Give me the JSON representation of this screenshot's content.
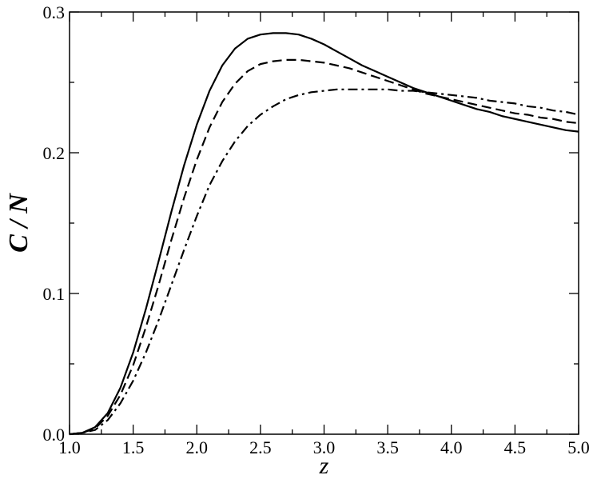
{
  "chart_data": {
    "type": "line",
    "title": "",
    "xlabel": "z",
    "ylabel": "C / N",
    "xlim": [
      1.0,
      5.0
    ],
    "ylim": [
      0.0,
      0.3
    ],
    "grid": false,
    "legend": "none",
    "x_ticks": [
      "1.0",
      "1.5",
      "2.0",
      "2.5",
      "3.0",
      "3.5",
      "4.0",
      "4.5",
      "5.0"
    ],
    "y_ticks": [
      "0.0",
      "0.1",
      "0.2",
      "0.3"
    ],
    "x": [
      1.0,
      1.1,
      1.2,
      1.3,
      1.4,
      1.5,
      1.6,
      1.7,
      1.8,
      1.9,
      2.0,
      2.1,
      2.2,
      2.3,
      2.4,
      2.5,
      2.6,
      2.7,
      2.8,
      2.9,
      3.0,
      3.1,
      3.2,
      3.3,
      3.4,
      3.5,
      3.6,
      3.7,
      3.8,
      3.9,
      4.0,
      4.1,
      4.2,
      4.3,
      4.4,
      4.5,
      4.6,
      4.7,
      4.8,
      4.9,
      5.0
    ],
    "series": [
      {
        "style": "solid",
        "values": [
          0.0,
          0.001,
          0.005,
          0.015,
          0.033,
          0.058,
          0.089,
          0.123,
          0.158,
          0.191,
          0.22,
          0.244,
          0.262,
          0.274,
          0.281,
          0.284,
          0.285,
          0.285,
          0.284,
          0.281,
          0.277,
          0.272,
          0.267,
          0.262,
          0.258,
          0.254,
          0.25,
          0.246,
          0.243,
          0.24,
          0.237,
          0.234,
          0.231,
          0.229,
          0.226,
          0.224,
          0.222,
          0.22,
          0.218,
          0.216,
          0.215
        ]
      },
      {
        "style": "dashed",
        "values": [
          0.0,
          0.001,
          0.004,
          0.013,
          0.028,
          0.049,
          0.076,
          0.106,
          0.138,
          0.168,
          0.195,
          0.218,
          0.236,
          0.249,
          0.258,
          0.263,
          0.265,
          0.266,
          0.266,
          0.265,
          0.264,
          0.262,
          0.26,
          0.257,
          0.254,
          0.251,
          0.248,
          0.245,
          0.242,
          0.24,
          0.238,
          0.236,
          0.234,
          0.232,
          0.23,
          0.228,
          0.227,
          0.225,
          0.224,
          0.222,
          0.221
        ]
      },
      {
        "style": "dash-dot",
        "values": [
          0.0,
          0.001,
          0.003,
          0.01,
          0.022,
          0.038,
          0.058,
          0.081,
          0.106,
          0.131,
          0.155,
          0.177,
          0.194,
          0.208,
          0.219,
          0.227,
          0.233,
          0.238,
          0.241,
          0.243,
          0.244,
          0.245,
          0.245,
          0.245,
          0.245,
          0.245,
          0.244,
          0.244,
          0.243,
          0.242,
          0.241,
          0.24,
          0.239,
          0.237,
          0.236,
          0.235,
          0.233,
          0.232,
          0.23,
          0.229,
          0.227
        ]
      }
    ]
  }
}
